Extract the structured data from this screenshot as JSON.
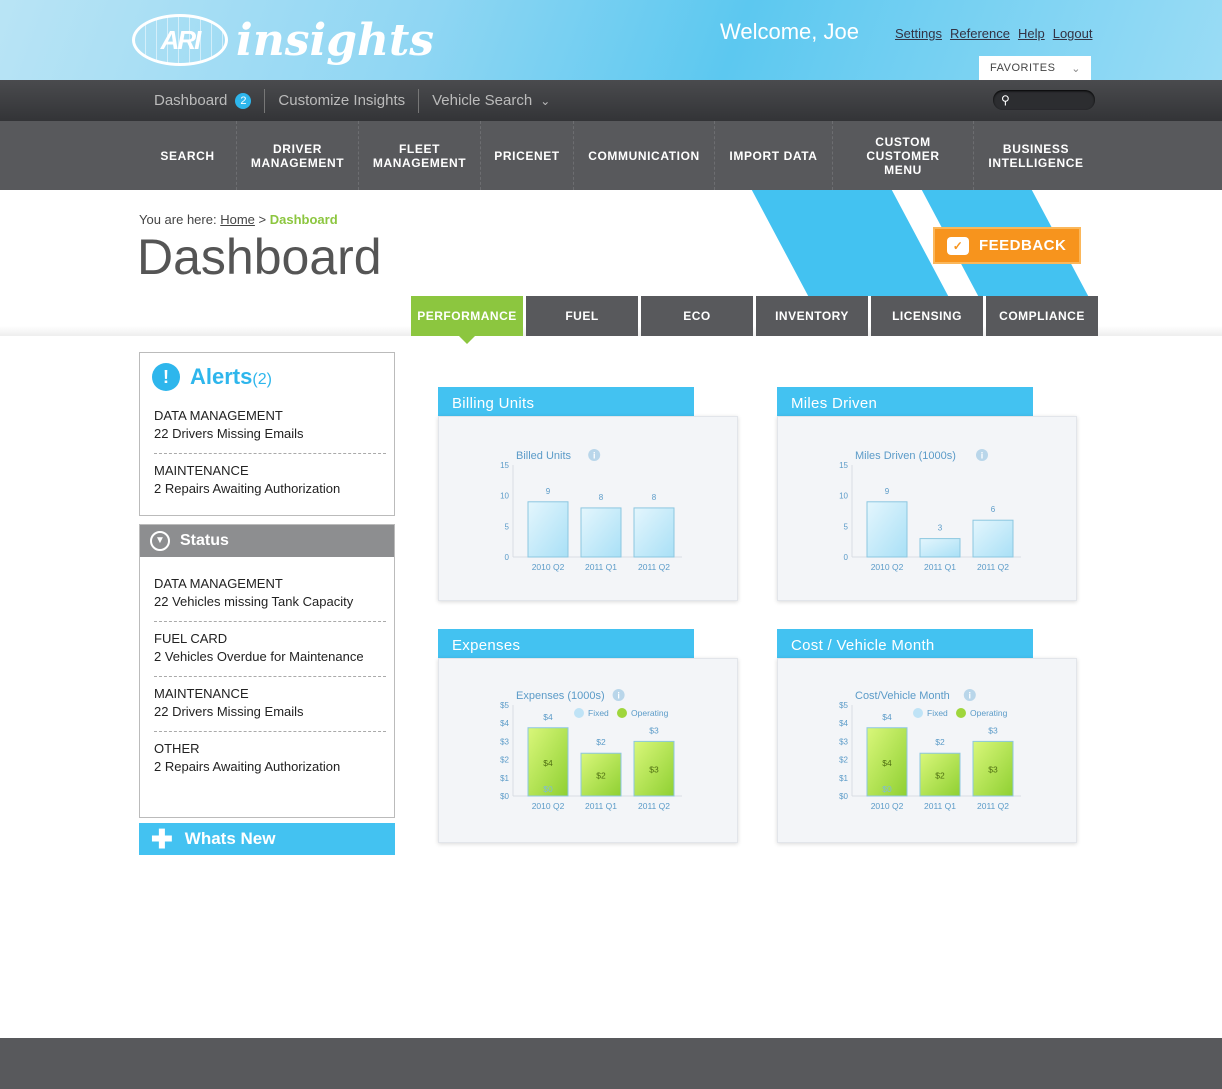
{
  "header": {
    "logo_mark": "ARI",
    "logo_text": "insights",
    "welcome": "Welcome, Joe",
    "links": [
      "Settings",
      "Reference",
      "Help",
      "Logout"
    ],
    "favorites": "FAVORITES"
  },
  "subnav": {
    "items": [
      "Dashboard",
      "Customize Insights",
      "Vehicle Search"
    ],
    "dashboard_badge": "2"
  },
  "mainnav": [
    "SEARCH",
    "DRIVER MANAGEMENT",
    "FLEET MANAGEMENT",
    "PRICENET",
    "COMMUNICATION",
    "IMPORT DATA",
    "CUSTOM CUSTOMER MENU",
    "BUSINESS INTELLIGENCE"
  ],
  "breadcrumb": {
    "prefix": "You are here:",
    "home": "Home",
    "sep": ">",
    "current": "Dashboard"
  },
  "page_title": "Dashboard",
  "feedback": "FEEDBACK",
  "tabs": [
    "PERFORMANCE",
    "FUEL",
    "ECO",
    "INVENTORY",
    "LICENSING",
    "COMPLIANCE"
  ],
  "active_tab": "PERFORMANCE",
  "alerts": {
    "title": "Alerts",
    "count": "(2)",
    "items": [
      {
        "category": "DATA MANAGEMENT",
        "text": "22 Drivers Missing Emails"
      },
      {
        "category": "MAINTENANCE",
        "text": "2 Repairs Awaiting Authorization"
      }
    ]
  },
  "status": {
    "title": "Status",
    "items": [
      {
        "category": "DATA MANAGEMENT",
        "text": "22 Vehicles missing Tank Capacity"
      },
      {
        "category": "FUEL CARD",
        "text": "2 Vehicles Overdue for Maintenance"
      },
      {
        "category": "MAINTENANCE",
        "text": "22 Drivers Missing Emails"
      },
      {
        "category": "OTHER",
        "text": "2 Repairs Awaiting Authorization"
      }
    ]
  },
  "whats_new": "Whats New",
  "colors": {
    "accent_blue": "#43c2f1",
    "accent_green": "#8cc63f",
    "feedback_orange": "#f7941d",
    "nav_dark": "#58595c"
  },
  "chart_data": [
    {
      "panel_title": "Billing Units",
      "type": "bar",
      "title": "Billed Units",
      "categories": [
        "2010 Q2",
        "2011 Q1",
        "2011 Q2"
      ],
      "values": [
        9,
        8,
        8
      ],
      "ylim": [
        0,
        15
      ],
      "yticks": [
        "0",
        "5",
        "10",
        "15"
      ]
    },
    {
      "panel_title": "Miles Driven",
      "type": "bar",
      "title": "Miles Driven (1000s)",
      "categories": [
        "2010 Q2",
        "2011 Q1",
        "2011 Q2"
      ],
      "values": [
        9,
        3,
        6
      ],
      "ylim": [
        0,
        15
      ],
      "yticks": [
        "0",
        "5",
        "10",
        "15"
      ]
    },
    {
      "panel_title": "Expenses",
      "type": "bar",
      "title": "Expenses (1000s)",
      "stacked": true,
      "categories": [
        "2010 Q2",
        "2011 Q1",
        "2011 Q2"
      ],
      "series": [
        {
          "name": "Fixed",
          "values": [
            0,
            null,
            null
          ],
          "labels": [
            "$0",
            "",
            ""
          ]
        },
        {
          "name": "Operating",
          "values": [
            3.75,
            2.35,
            3.0
          ],
          "labels": [
            "$4",
            "$2",
            "$3"
          ]
        }
      ],
      "total_labels": [
        "$4",
        "$2",
        "$3"
      ],
      "ylim": [
        0,
        5
      ],
      "yticks": [
        "$0",
        "$1",
        "$2",
        "$3",
        "$4",
        "$5"
      ]
    },
    {
      "panel_title": "Cost / Vehicle Month",
      "type": "bar",
      "title": "Cost/Vehicle Month",
      "stacked": true,
      "categories": [
        "2010 Q2",
        "2011 Q1",
        "2011 Q2"
      ],
      "series": [
        {
          "name": "Fixed",
          "values": [
            0,
            null,
            null
          ],
          "labels": [
            "$0",
            "",
            ""
          ]
        },
        {
          "name": "Operating",
          "values": [
            3.75,
            2.35,
            3.0
          ],
          "labels": [
            "$4",
            "$2",
            "$3"
          ]
        }
      ],
      "total_labels": [
        "$4",
        "$2",
        "$3"
      ],
      "ylim": [
        0,
        5
      ],
      "yticks": [
        "$0",
        "$1",
        "$2",
        "$3",
        "$4",
        "$5"
      ]
    }
  ]
}
